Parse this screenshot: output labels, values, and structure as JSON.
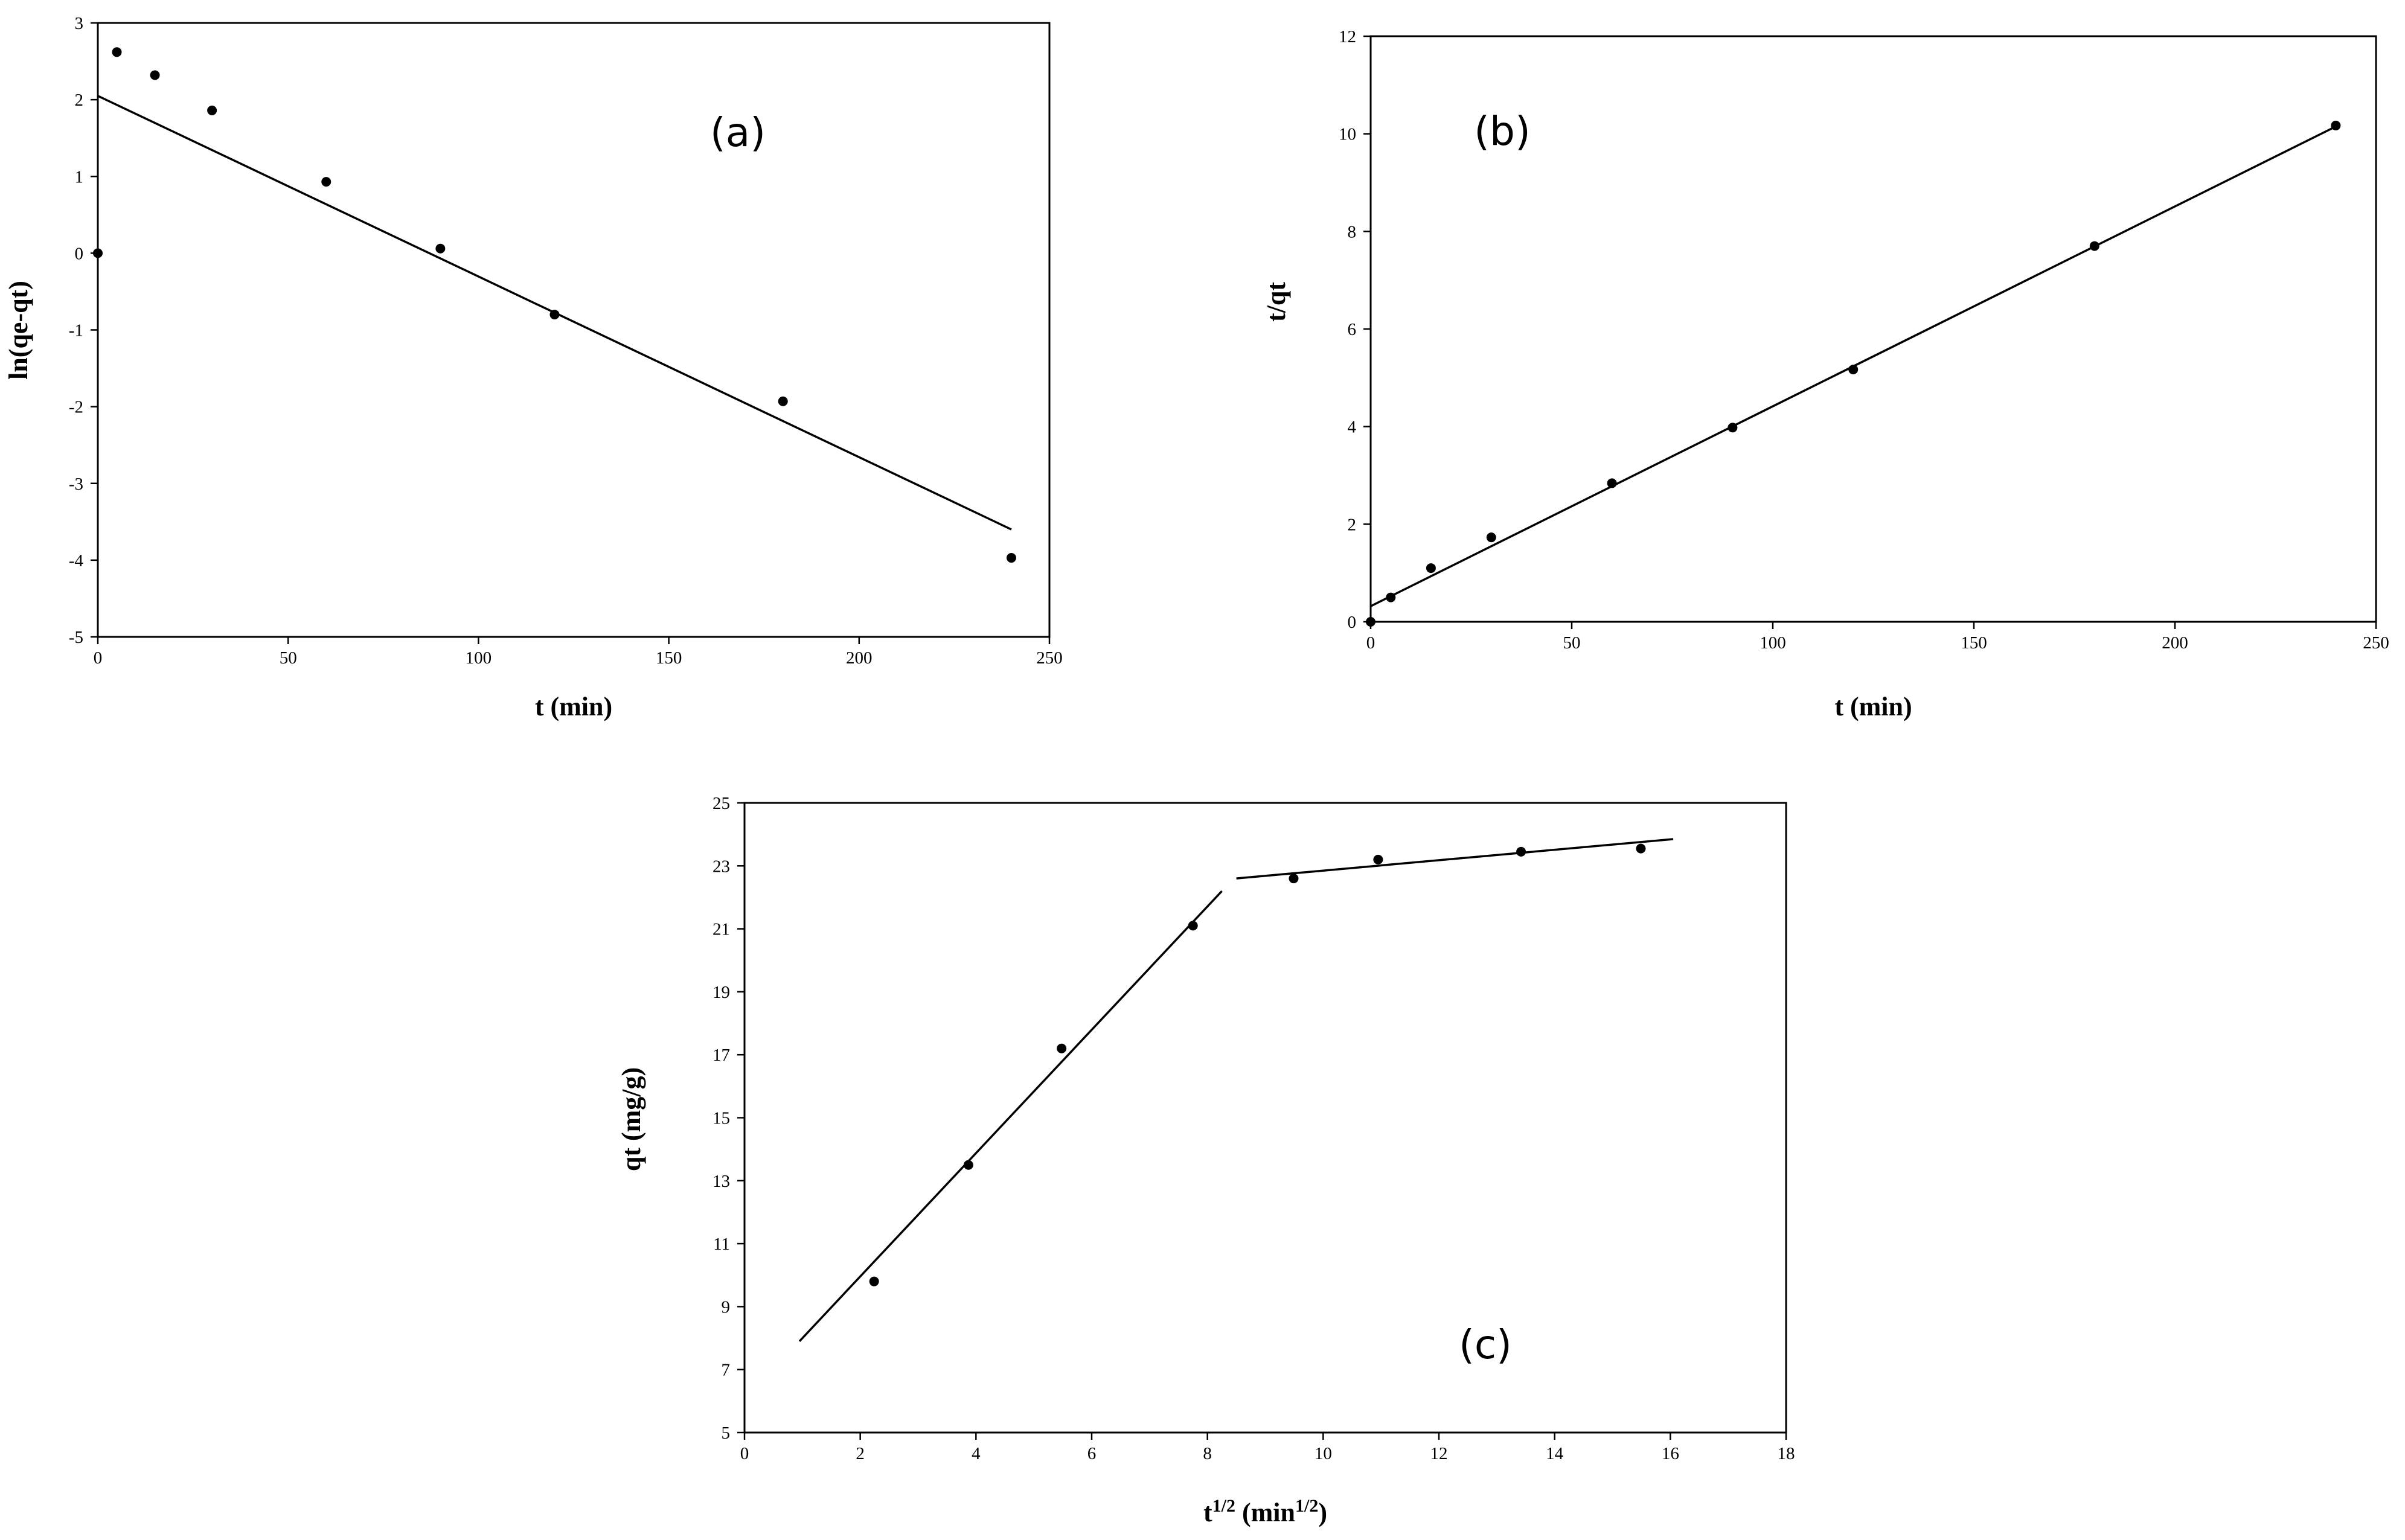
{
  "chart_data": [
    {
      "type": "scatter",
      "panel_label": "(a)",
      "xlabel": "t (min)",
      "ylabel": "ln(qe-qt)",
      "xlim": [
        0,
        250
      ],
      "ylim": [
        -5,
        3
      ],
      "xticks": [
        0,
        50,
        100,
        150,
        200,
        250
      ],
      "yticks": [
        -5,
        -4,
        -3,
        -2,
        -1,
        0,
        1,
        2,
        3
      ],
      "grid": false,
      "points": [
        {
          "x": 0,
          "y": 0.0
        },
        {
          "x": 5,
          "y": 2.62
        },
        {
          "x": 15,
          "y": 2.32
        },
        {
          "x": 30,
          "y": 1.86
        },
        {
          "x": 60,
          "y": 0.93
        },
        {
          "x": 90,
          "y": 0.06
        },
        {
          "x": 120,
          "y": -0.8
        },
        {
          "x": 180,
          "y": -1.93
        },
        {
          "x": 240,
          "y": -3.97
        }
      ],
      "fit_lines": [
        {
          "x": [
            0,
            240
          ],
          "y": [
            2.05,
            -3.6
          ]
        }
      ]
    },
    {
      "type": "scatter",
      "panel_label": "(b)",
      "xlabel": "t (min)",
      "ylabel": "t/qt",
      "xlim": [
        0,
        250
      ],
      "ylim": [
        0,
        12
      ],
      "xticks": [
        0,
        50,
        100,
        150,
        200,
        250
      ],
      "yticks": [
        0,
        2,
        4,
        6,
        8,
        10,
        12
      ],
      "grid": false,
      "points": [
        {
          "x": 0,
          "y": 0.0
        },
        {
          "x": 5,
          "y": 0.5
        },
        {
          "x": 15,
          "y": 1.1
        },
        {
          "x": 30,
          "y": 1.73
        },
        {
          "x": 60,
          "y": 2.84
        },
        {
          "x": 90,
          "y": 3.98
        },
        {
          "x": 120,
          "y": 5.17
        },
        {
          "x": 180,
          "y": 7.7
        },
        {
          "x": 240,
          "y": 10.17
        }
      ],
      "fit_lines": [
        {
          "x": [
            0,
            240
          ],
          "y": [
            0.32,
            10.15
          ]
        }
      ]
    },
    {
      "type": "scatter",
      "panel_label": "(c)",
      "xlabel": "t1/2 (min1/2)",
      "ylabel": "qt (mg/g)",
      "xlim": [
        0,
        18
      ],
      "ylim": [
        5,
        25
      ],
      "xticks": [
        0,
        2,
        4,
        6,
        8,
        10,
        12,
        14,
        16,
        18
      ],
      "yticks": [
        5,
        7,
        9,
        11,
        13,
        15,
        17,
        19,
        21,
        23,
        25
      ],
      "grid": false,
      "points": [
        {
          "x": 2.24,
          "y": 9.8
        },
        {
          "x": 3.87,
          "y": 13.5
        },
        {
          "x": 5.48,
          "y": 17.2
        },
        {
          "x": 7.75,
          "y": 21.1
        },
        {
          "x": 9.49,
          "y": 22.6
        },
        {
          "x": 10.95,
          "y": 23.2
        },
        {
          "x": 13.42,
          "y": 23.45
        },
        {
          "x": 15.49,
          "y": 23.55
        }
      ],
      "fit_lines": [
        {
          "x": [
            0.95,
            8.25
          ],
          "y": [
            7.9,
            22.2
          ]
        },
        {
          "x": [
            8.5,
            16.05
          ],
          "y": [
            22.6,
            23.85
          ]
        }
      ]
    }
  ]
}
